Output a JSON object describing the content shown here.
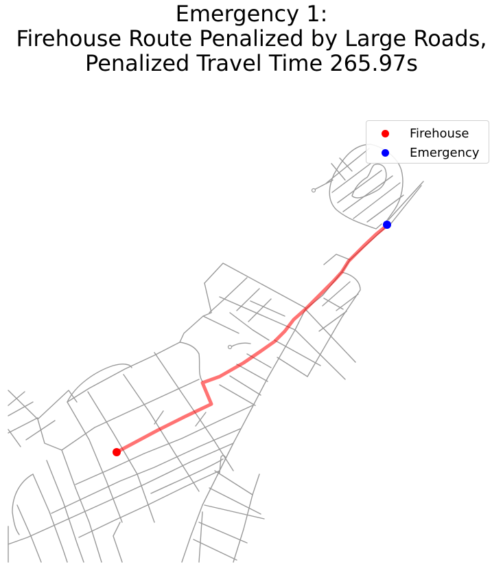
{
  "title": {
    "line1": "Emergency 1:",
    "line2": "Firehouse Route Penalized by Large Roads,",
    "line3": "Penalized Travel Time 265.97s"
  },
  "legend": {
    "placement": "top-right",
    "items": [
      {
        "label": "Firehouse",
        "color": "#ff0000"
      },
      {
        "label": "Emergency",
        "color": "#0000ff"
      }
    ]
  },
  "colors": {
    "street": "#999999",
    "route": "#ff0000",
    "firehouse": "#ff0000",
    "emergency": "#0000ff"
  }
}
